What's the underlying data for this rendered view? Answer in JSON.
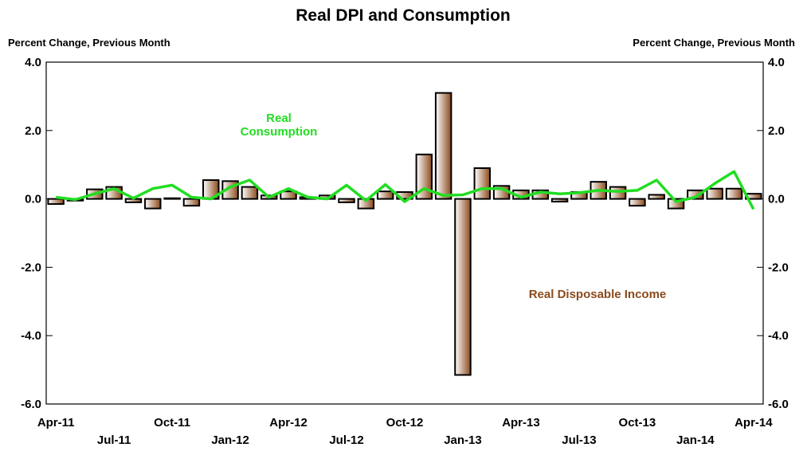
{
  "chart_data": {
    "type": "bar_line",
    "title": "Real DPI and Consumption",
    "y_label": "Percent Change, Previous Month",
    "y2_label": "Percent Change, Previous Month",
    "categories": [
      "Apr-11",
      null,
      null,
      "Jul-11",
      null,
      null,
      "Oct-11",
      null,
      null,
      "Jan-12",
      null,
      null,
      "Apr-12",
      null,
      null,
      "Jul-12",
      null,
      null,
      "Oct-12",
      null,
      null,
      "Jan-13",
      null,
      null,
      "Apr-13",
      null,
      null,
      "Jul-13",
      null,
      null,
      "Oct-13",
      null,
      null,
      "Jan-14",
      null,
      null,
      "Apr-14"
    ],
    "series": [
      {
        "name": "Real Disposable Income",
        "type": "bar",
        "color": "#8b4a1c",
        "values": [
          -0.15,
          -0.05,
          0.28,
          0.35,
          -0.1,
          -0.28,
          0.02,
          -0.2,
          0.55,
          0.52,
          0.35,
          0.1,
          0.22,
          0.05,
          0.1,
          -0.1,
          -0.28,
          0.22,
          0.2,
          1.3,
          3.1,
          -5.15,
          0.9,
          0.38,
          0.25,
          0.25,
          -0.08,
          0.2,
          0.5,
          0.35,
          -0.2,
          0.12,
          -0.28,
          0.25,
          0.3,
          0.3,
          0.15
        ]
      },
      {
        "name": "Real Consumption",
        "type": "line",
        "color": "#22dd22",
        "values": [
          0.05,
          -0.02,
          0.15,
          0.3,
          0.02,
          0.3,
          0.4,
          0.05,
          0.0,
          0.35,
          0.55,
          0.05,
          0.3,
          0.05,
          0.0,
          0.4,
          -0.05,
          0.42,
          -0.08,
          0.3,
          0.1,
          0.12,
          0.3,
          0.3,
          0.05,
          0.2,
          0.15,
          0.18,
          0.25,
          0.22,
          0.25,
          0.55,
          -0.08,
          0.05,
          0.45,
          0.8,
          -0.3
        ]
      }
    ],
    "ylim": [
      -6,
      4
    ],
    "yticks": [
      {
        "value": -6,
        "label": "-6.0"
      },
      {
        "value": -4,
        "label": "-4.0"
      },
      {
        "value": -2,
        "label": "-2.0"
      },
      {
        "value": 0,
        "label": "0.0"
      },
      {
        "value": 2,
        "label": "2.0"
      },
      {
        "value": 4,
        "label": "4.0"
      }
    ],
    "y2lim": [
      -6,
      4
    ],
    "y2ticks": [
      {
        "value": -6,
        "label": "-6.0"
      },
      {
        "value": -4,
        "label": "-4.0"
      },
      {
        "value": -2,
        "label": "-2.0"
      },
      {
        "value": 0,
        "label": "0.0"
      },
      {
        "value": 2,
        "label": "2.0"
      },
      {
        "value": 4,
        "label": "4.0"
      }
    ]
  }
}
